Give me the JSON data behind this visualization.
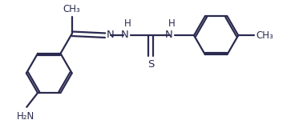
{
  "bg_color": "#ffffff",
  "line_color": "#2a2a50",
  "line_width": 1.6,
  "font_size": 8.5,
  "figsize": [
    3.83,
    1.75
  ],
  "dpi": 100,
  "xlim": [
    0,
    9.5
  ],
  "ylim": [
    0,
    4.4
  ]
}
